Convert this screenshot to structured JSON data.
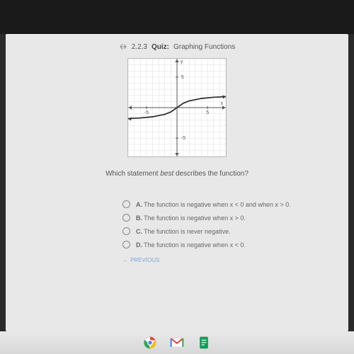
{
  "header": {
    "icon_name": "back-arrow",
    "section": "2.2.3",
    "label_bold": "Quiz:",
    "title": "Graphing Functions"
  },
  "graph": {
    "type": "line",
    "xlim": [
      -8,
      8
    ],
    "ylim": [
      -8,
      8
    ],
    "xtick_labels": {
      "-5": "-5",
      "5": "5"
    },
    "ytick_labels": {
      "-5": "-5",
      "5": "5"
    },
    "axis_labels": {
      "x": "x",
      "y": "y"
    },
    "grid_color": "#dcdcdc",
    "axis_color": "#555555",
    "curve_color": "#333333",
    "curve_width": 1.8,
    "background_color": "#ffffff",
    "label_fontsize": 7,
    "curve_points": [
      [
        -8,
        -1.8
      ],
      [
        -6,
        -1.7
      ],
      [
        -4,
        -1.5
      ],
      [
        -2,
        -1.1
      ],
      [
        -1,
        -0.7
      ],
      [
        0,
        0
      ],
      [
        1,
        0.7
      ],
      [
        2,
        1.1
      ],
      [
        4,
        1.5
      ],
      [
        6,
        1.7
      ],
      [
        8,
        1.8
      ]
    ],
    "arrows": true
  },
  "question": {
    "prefix": "Which statement ",
    "emph": "best",
    "suffix": " describes the function?"
  },
  "options": [
    {
      "letter": "A.",
      "text": "The function is negative when x < 0 and when x > 0."
    },
    {
      "letter": "B.",
      "text": "The function is negative when x > 0."
    },
    {
      "letter": "C.",
      "text": "The function is never negative."
    },
    {
      "letter": "D.",
      "text": "The function is negative when x < 0."
    }
  ],
  "nav": {
    "previous": "PREVIOUS",
    "arrow": "←"
  },
  "taskbar": {
    "icons": [
      "chrome",
      "gmail",
      "docs"
    ]
  }
}
